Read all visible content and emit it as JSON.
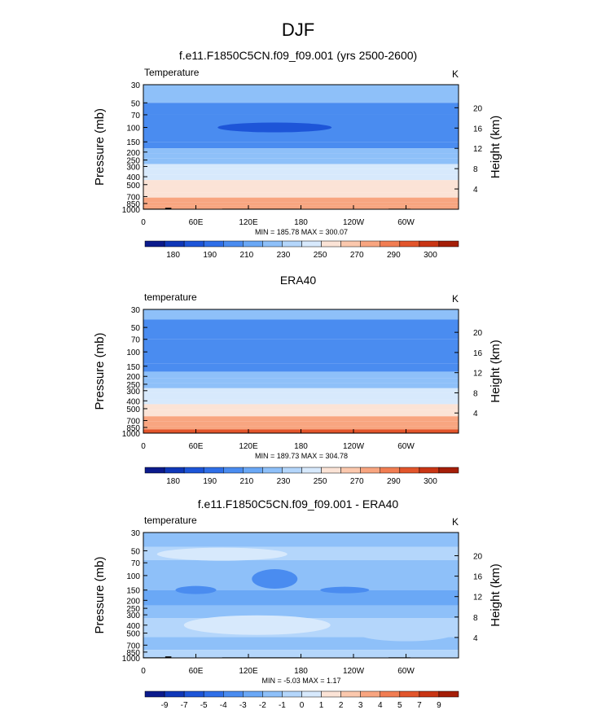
{
  "figure": {
    "season_title": "DJF"
  },
  "chart_data": [
    {
      "type": "heatmap",
      "title": "f.e11.F1850C5CN.f09_f09.001 (yrs 2500-2600)",
      "left_label": "Temperature",
      "units": "K",
      "ylabel": "Pressure (mb)",
      "y2label": "Height (km)",
      "yticks": [
        "30",
        "50",
        "70",
        "100",
        "150",
        "200",
        "250",
        "300",
        "400",
        "500",
        "700",
        "850",
        "1000"
      ],
      "y2ticks": [
        "20",
        "16",
        "12",
        "8",
        "4"
      ],
      "xticks": [
        "0",
        "60E",
        "120E",
        "180",
        "120W",
        "60W"
      ],
      "stats": "MIN = 185.78  MAX = 300.07",
      "levels": [
        "180",
        "190",
        "210",
        "230",
        "250",
        "270",
        "290",
        "300"
      ],
      "bands": [
        {
          "p": [
            30,
            50
          ],
          "v": 212
        },
        {
          "p": [
            50,
            70
          ],
          "v": 205
        },
        {
          "p": [
            70,
            150
          ],
          "v": 198
        },
        {
          "p": [
            150,
            180
          ],
          "v": 205
        },
        {
          "p": [
            180,
            210
          ],
          "v": 212
        },
        {
          "p": [
            210,
            240
          ],
          "v": 219
        },
        {
          "p": [
            240,
            280
          ],
          "v": 226
        },
        {
          "p": [
            280,
            320
          ],
          "v": 233
        },
        {
          "p": [
            320,
            380
          ],
          "v": 240
        },
        {
          "p": [
            380,
            440
          ],
          "v": 247
        },
        {
          "p": [
            440,
            520
          ],
          "v": 254
        },
        {
          "p": [
            520,
            620
          ],
          "v": 261
        },
        {
          "p": [
            620,
            720
          ],
          "v": 268
        },
        {
          "p": [
            720,
            820
          ],
          "v": 275
        },
        {
          "p": [
            820,
            900
          ],
          "v": 282
        },
        {
          "p": [
            900,
            1000
          ],
          "v": 289
        }
      ]
    },
    {
      "type": "heatmap",
      "title": "ERA40",
      "left_label": "temperature",
      "units": "K",
      "ylabel": "Pressure (mb)",
      "y2label": "Height (km)",
      "yticks": [
        "30",
        "50",
        "70",
        "100",
        "150",
        "200",
        "250",
        "300",
        "400",
        "500",
        "700",
        "850",
        "1000"
      ],
      "y2ticks": [
        "20",
        "16",
        "12",
        "8",
        "4"
      ],
      "xticks": [
        "0",
        "60E",
        "120E",
        "180",
        "120W",
        "60W"
      ],
      "stats": "MIN = 189.73  MAX = 304.78",
      "levels": [
        "180",
        "190",
        "210",
        "230",
        "250",
        "270",
        "290",
        "300"
      ],
      "bands": [
        {
          "p": [
            30,
            40
          ],
          "v": 219
        },
        {
          "p": [
            40,
            70
          ],
          "v": 208
        },
        {
          "p": [
            70,
            140
          ],
          "v": 200
        },
        {
          "p": [
            140,
            175
          ],
          "v": 206
        },
        {
          "p": [
            175,
            210
          ],
          "v": 213
        },
        {
          "p": [
            210,
            240
          ],
          "v": 220
        },
        {
          "p": [
            240,
            280
          ],
          "v": 227
        },
        {
          "p": [
            280,
            320
          ],
          "v": 234
        },
        {
          "p": [
            320,
            380
          ],
          "v": 241
        },
        {
          "p": [
            380,
            440
          ],
          "v": 248
        },
        {
          "p": [
            440,
            520
          ],
          "v": 255
        },
        {
          "p": [
            520,
            620
          ],
          "v": 262
        },
        {
          "p": [
            620,
            720
          ],
          "v": 270
        },
        {
          "p": [
            720,
            820
          ],
          "v": 277
        },
        {
          "p": [
            820,
            900
          ],
          "v": 284
        },
        {
          "p": [
            900,
            1000
          ],
          "v": 291
        }
      ]
    },
    {
      "type": "heatmap",
      "title": "f.e11.F1850C5CN.f09_f09.001 - ERA40",
      "left_label": "temperature",
      "units": "K",
      "ylabel": "Pressure (mb)",
      "y2label": "Height (km)",
      "yticks": [
        "30",
        "50",
        "70",
        "100",
        "150",
        "200",
        "250",
        "300",
        "400",
        "500",
        "700",
        "850",
        "1000"
      ],
      "y2ticks": [
        "20",
        "16",
        "12",
        "8",
        "4"
      ],
      "xticks": [
        "0",
        "60E",
        "120E",
        "180",
        "120W",
        "60W"
      ],
      "stats": "MIN = -5.03  MAX =   1.17",
      "levels": [
        "-9",
        "-7",
        "-5",
        "-4",
        "-3",
        "-2",
        "-1",
        "0",
        "1",
        "2",
        "3",
        "4",
        "5",
        "7",
        "9"
      ],
      "bands": [
        {
          "p": [
            30,
            45
          ],
          "v": -2
        },
        {
          "p": [
            45,
            65
          ],
          "v": -1
        },
        {
          "p": [
            65,
            150
          ],
          "v": -2
        },
        {
          "p": [
            150,
            230
          ],
          "v": -3
        },
        {
          "p": [
            230,
            330
          ],
          "v": -2
        },
        {
          "p": [
            330,
            560
          ],
          "v": -1
        },
        {
          "p": [
            560,
            800
          ],
          "v": -2
        },
        {
          "p": [
            800,
            1000
          ],
          "v": -1
        }
      ]
    }
  ]
}
